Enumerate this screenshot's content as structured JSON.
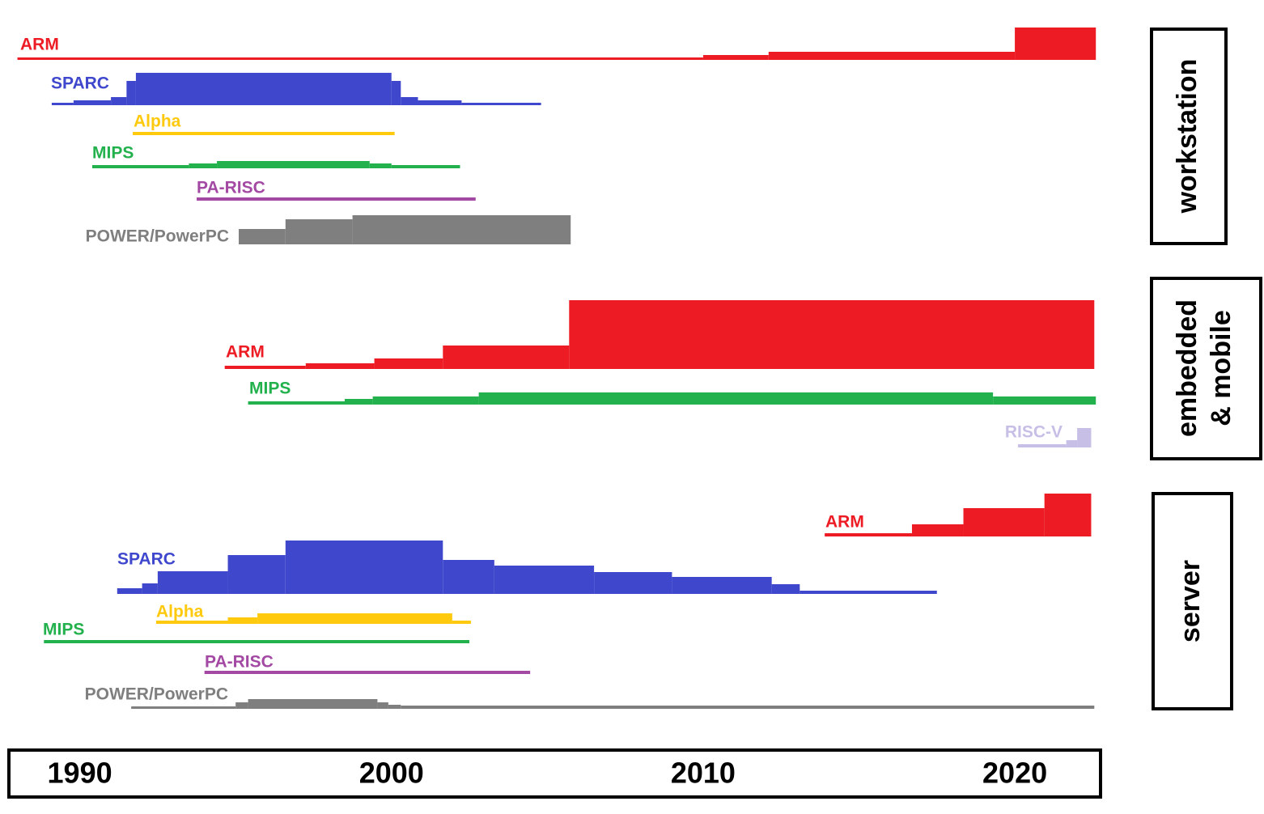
{
  "chart_data": {
    "type": "step-area",
    "xlim": [
      1987.7,
      2022.75
    ],
    "xticks": [
      1990,
      2000,
      2010,
      2020
    ],
    "panels": [
      {
        "label_lines": [
          "workstation"
        ],
        "rows": [
          {
            "name": "ARM",
            "color": "#ed1c24",
            "x": [
              1988,
              2010,
              2012.1,
              2020,
              2022.6
            ],
            "values": [
              3,
              6,
              10,
              40
            ]
          },
          {
            "name": "SPARC",
            "color": "#3f48cc",
            "x": [
              1989.1,
              1989.8,
              1991,
              1991.5,
              1991.8,
              2000,
              2000.3,
              2000.85,
              2002.25,
              2004.8
            ],
            "values": [
              3,
              6,
              10,
              30,
              40,
              30,
              10,
              6,
              3
            ]
          },
          {
            "name": "Alpha",
            "color": "#ffc90e",
            "x": [
              1991.7,
              2000.1
            ],
            "values": [
              4
            ]
          },
          {
            "name": "MIPS",
            "color": "#22b14c",
            "x": [
              1990.4,
              1993.5,
              1994.4,
              1999.3,
              2000,
              2002.2
            ],
            "values": [
              4,
              6,
              9,
              6,
              4
            ]
          },
          {
            "name": "PA-RISC",
            "color": "#a349a4",
            "x": [
              1993.75,
              2002.7
            ],
            "values": [
              4
            ]
          },
          {
            "name": "POWER/PowerPC",
            "color": "#7f7f7f",
            "x": [
              1995.1,
              1996.6,
              1998.75,
              2005.75
            ],
            "values": [
              19,
              31,
              36
            ]
          }
        ]
      },
      {
        "label_lines": [
          "embedded",
          "& mobile"
        ],
        "rows": [
          {
            "name": "ARM",
            "color": "#ed1c24",
            "x": [
              1994.65,
              1997.25,
              1999.45,
              2001.65,
              2005.7,
              2022.55
            ],
            "values": [
              4,
              7,
              13,
              29,
              85
            ]
          },
          {
            "name": "MIPS",
            "color": "#22b14c",
            "x": [
              1995.4,
              1998.5,
              1999.4,
              2002.8,
              2019.3,
              2022.6
            ],
            "values": [
              4,
              7,
              10,
              15,
              10
            ]
          },
          {
            "name": "RISC-V",
            "color": "#c8bfe7",
            "x": [
              2020.1,
              2021.65,
              2022,
              2022.45
            ],
            "values": [
              4,
              9,
              24
            ]
          }
        ]
      },
      {
        "label_lines": [
          "server"
        ],
        "rows": [
          {
            "name": "ARM",
            "color": "#ed1c24",
            "x": [
              2013.9,
              2016.7,
              2018.35,
              2020.95,
              2022.45
            ],
            "values": [
              4,
              15,
              35,
              53
            ]
          },
          {
            "name": "SPARC",
            "color": "#3f48cc",
            "x": [
              1991.2,
              1992,
              1992.5,
              1994.75,
              1996.6,
              2001.65,
              2003.3,
              2006.5,
              2009,
              2012.2,
              2013.1,
              2017.5
            ],
            "values": [
              7,
              13,
              28,
              48,
              66,
              42,
              35,
              27,
              21,
              12,
              4
            ]
          },
          {
            "name": "Alpha",
            "color": "#ffc90e",
            "x": [
              1992.45,
              1994.75,
              1995.7,
              2001.95,
              2002.55
            ],
            "values": [
              4,
              8,
              13,
              4
            ]
          },
          {
            "name": "MIPS",
            "color": "#22b14c",
            "x": [
              1988.85,
              2002.5
            ],
            "values": [
              4
            ]
          },
          {
            "name": "PA-RISC",
            "color": "#a349a4",
            "x": [
              1994,
              2004.45
            ],
            "values": [
              4
            ]
          },
          {
            "name": "POWER/PowerPC",
            "color": "#7f7f7f",
            "x": [
              1991.65,
              1995,
              1995.4,
              1999.55,
              1999.9,
              2000.3,
              2022.55
            ],
            "values": [
              3,
              8,
              12,
              8,
              5,
              4
            ]
          }
        ]
      }
    ]
  }
}
